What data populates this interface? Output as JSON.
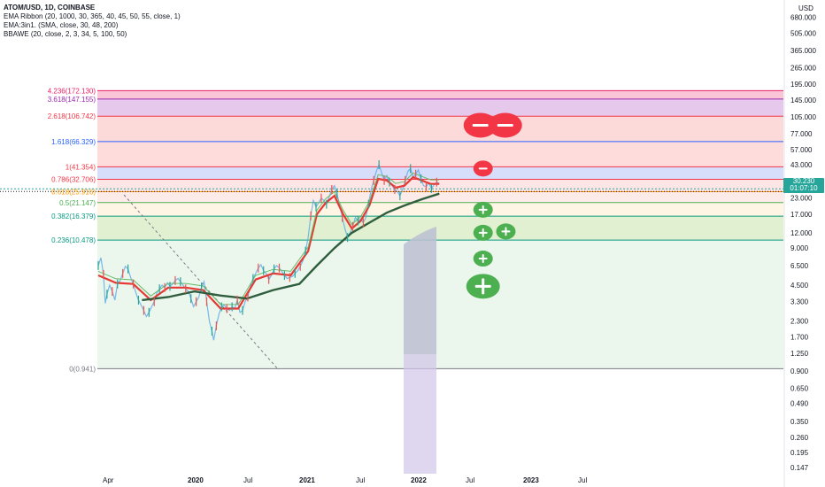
{
  "legend": {
    "title": "ATOM/USD, 1D, COINBASE",
    "indicators": [
      "EMA Ribbon (20, 1000, 30, 365, 40, 45, 50, 55, close, 1)",
      "EMA:3in1. (SMA, close, 30, 48, 200)",
      "BBAWE (20, close, 2, 3, 34, 5, 100, 50)"
    ]
  },
  "price_badge": {
    "price": "30.230",
    "countdown": "01:07:10"
  },
  "colors": {
    "up": "#26a69a",
    "down": "#ef5350",
    "ribbon": "#e53935",
    "ema200": "#2e5e3e",
    "minus_marker": "#f23645",
    "plus_marker": "#4caf50"
  },
  "chart_data": {
    "type": "line",
    "symbol": "ATOM/USD",
    "interval": "1D",
    "exchange": "COINBASE",
    "y_scale": "log",
    "ylim": [
      0.13,
      950
    ],
    "y_axis_unit": "USD",
    "yticks": [
      "680.000",
      "505.000",
      "365.000",
      "265.000",
      "195.000",
      "145.000",
      "105.000",
      "77.000",
      "57.000",
      "43.000",
      "23.000",
      "17.000",
      "12.000",
      "9.000",
      "6.500",
      "4.500",
      "3.300",
      "2.300",
      "1.700",
      "1.250",
      "0.900",
      "0.650",
      "0.490",
      "0.350",
      "0.260",
      "0.195",
      "0.147"
    ],
    "x_tick_labels": [
      "Apr",
      "2020",
      "Jul",
      "2021",
      "Jul",
      "2022",
      "Jul",
      "2023",
      "Jul"
    ],
    "fib_levels": [
      {
        "ratio": "4.236",
        "value": 172.13,
        "label": "4.236(172.130)",
        "color": "#e91e63",
        "fill": "#f8bbd0"
      },
      {
        "ratio": "3.618",
        "value": 147.155,
        "label": "3.618(147.155)",
        "color": "#9c27b0",
        "fill": "#e1bee7"
      },
      {
        "ratio": "2.618",
        "value": 106.742,
        "label": "2.618(106.742)",
        "color": "#f23645",
        "fill": "#fcd4d4"
      },
      {
        "ratio": "1.618",
        "value": 66.329,
        "label": "1.618(66.329)",
        "color": "#2962ff",
        "fill": "#ffd6d6"
      },
      {
        "ratio": "1",
        "value": 41.354,
        "label": "1(41.354)",
        "color": "#f23645",
        "fill": "#cfd8fc"
      },
      {
        "ratio": "0.786",
        "value": 32.706,
        "label": "0.786(32.706)",
        "color": "#f23645",
        "fill": "#fde0e0"
      },
      {
        "ratio": "0.618",
        "value": 25.916,
        "label": "0.618(25.916)",
        "color": "#ff9800",
        "fill": "#fde8e6"
      },
      {
        "ratio": "0.5",
        "value": 21.147,
        "label": "0.5(21.147)",
        "color": "#4caf50",
        "fill": "#fff3e0"
      },
      {
        "ratio": "0.382",
        "value": 16.379,
        "label": "0.382(16.379)",
        "color": "#089981",
        "fill": "#dcedc8"
      },
      {
        "ratio": "0.236",
        "value": 10.478,
        "label": "0.236(10.478)",
        "color": "#089981",
        "fill": "#e8f5e9"
      },
      {
        "ratio": "0",
        "value": 0.941,
        "label": "0(0.941)",
        "color": "#787b86",
        "fill": "#d9f1ed"
      }
    ],
    "last_price": 30.23,
    "price_series": [
      [
        0,
        6.5
      ],
      [
        3,
        7.5
      ],
      [
        6,
        5.5
      ],
      [
        8,
        3.2
      ],
      [
        10,
        3.8
      ],
      [
        13,
        4.5
      ],
      [
        16,
        4.0
      ],
      [
        19,
        3.4
      ],
      [
        22,
        4.6
      ],
      [
        25,
        4.9
      ],
      [
        28,
        5.6
      ],
      [
        31,
        6.4
      ],
      [
        34,
        6.1
      ],
      [
        37,
        5.2
      ],
      [
        40,
        4.6
      ],
      [
        43,
        3.9
      ],
      [
        46,
        3.4
      ],
      [
        49,
        3.1
      ],
      [
        52,
        2.8
      ],
      [
        55,
        2.5
      ],
      [
        58,
        2.7
      ],
      [
        61,
        3.0
      ],
      [
        64,
        3.3
      ],
      [
        67,
        3.9
      ],
      [
        70,
        4.2
      ],
      [
        73,
        4.5
      ],
      [
        76,
        4.3
      ],
      [
        79,
        4.7
      ],
      [
        82,
        4.4
      ],
      [
        85,
        4.6
      ],
      [
        88,
        4.9
      ],
      [
        91,
        5.1
      ],
      [
        94,
        4.8
      ],
      [
        97,
        4.5
      ],
      [
        100,
        4.2
      ],
      [
        103,
        4.0
      ],
      [
        106,
        3.5
      ],
      [
        109,
        3.0
      ],
      [
        112,
        3.3
      ],
      [
        115,
        3.6
      ],
      [
        118,
        4.3
      ],
      [
        121,
        4.8
      ],
      [
        124,
        3.3
      ],
      [
        127,
        2.3
      ],
      [
        130,
        1.9
      ],
      [
        132,
        1.6
      ],
      [
        135,
        2.1
      ],
      [
        138,
        2.6
      ],
      [
        141,
        3.0
      ],
      [
        144,
        3.1
      ],
      [
        147,
        2.9
      ],
      [
        150,
        2.8
      ],
      [
        153,
        3.0
      ],
      [
        156,
        2.9
      ],
      [
        159,
        3.4
      ],
      [
        162,
        2.7
      ],
      [
        165,
        2.8
      ],
      [
        168,
        3.3
      ],
      [
        171,
        3.6
      ],
      [
        174,
        4.4
      ],
      [
        177,
        5.1
      ],
      [
        180,
        5.6
      ],
      [
        183,
        6.2
      ],
      [
        186,
        6.6
      ],
      [
        189,
        5.9
      ],
      [
        192,
        5.6
      ],
      [
        195,
        5.0
      ],
      [
        198,
        5.4
      ],
      [
        201,
        6.1
      ],
      [
        204,
        6.5
      ],
      [
        207,
        6.2
      ],
      [
        210,
        5.8
      ],
      [
        213,
        5.4
      ],
      [
        216,
        5.1
      ],
      [
        219,
        5.2
      ],
      [
        222,
        5.3
      ],
      [
        225,
        5.6
      ],
      [
        228,
        5.9
      ],
      [
        231,
        6.4
      ],
      [
        234,
        7.1
      ],
      [
        237,
        8.5
      ],
      [
        240,
        11.0
      ],
      [
        243,
        16.5
      ],
      [
        246,
        22.0
      ],
      [
        249,
        19.5
      ],
      [
        252,
        21.0
      ],
      [
        255,
        23.0
      ],
      [
        258,
        22.0
      ],
      [
        261,
        20.5
      ],
      [
        264,
        23.5
      ],
      [
        267,
        27.0
      ],
      [
        270,
        29.0
      ],
      [
        273,
        25.0
      ],
      [
        276,
        20.0
      ],
      [
        279,
        16.0
      ],
      [
        282,
        13.0
      ],
      [
        285,
        11.0
      ],
      [
        288,
        12.0
      ],
      [
        291,
        13.5
      ],
      [
        294,
        16.0
      ],
      [
        297,
        15.0
      ],
      [
        300,
        15.5
      ],
      [
        303,
        14.5
      ],
      [
        306,
        16.0
      ],
      [
        309,
        20.5
      ],
      [
        312,
        27.0
      ],
      [
        315,
        32.0
      ],
      [
        318,
        38.0
      ],
      [
        321,
        43.0
      ],
      [
        324,
        37.0
      ],
      [
        327,
        32.0
      ],
      [
        330,
        35.0
      ],
      [
        333,
        31.0
      ],
      [
        336,
        29.0
      ],
      [
        339,
        27.0
      ],
      [
        342,
        26.0
      ],
      [
        345,
        24.0
      ],
      [
        348,
        27.0
      ],
      [
        351,
        32.0
      ],
      [
        354,
        38.0
      ],
      [
        357,
        40.0
      ],
      [
        360,
        34.0
      ],
      [
        363,
        36.0
      ],
      [
        366,
        39.0
      ],
      [
        369,
        33.0
      ],
      [
        372,
        29.0
      ],
      [
        375,
        28.5
      ],
      [
        378,
        30.5
      ],
      [
        381,
        27.5
      ],
      [
        384,
        29.5
      ],
      [
        387,
        31.0
      ],
      [
        390,
        30.23
      ]
    ],
    "ribbon_series": [
      [
        0,
        5.4
      ],
      [
        20,
        4.7
      ],
      [
        40,
        4.6
      ],
      [
        60,
        3.4
      ],
      [
        80,
        4.3
      ],
      [
        100,
        4.3
      ],
      [
        120,
        4.1
      ],
      [
        140,
        2.9
      ],
      [
        160,
        2.9
      ],
      [
        180,
        5.0
      ],
      [
        200,
        5.6
      ],
      [
        220,
        5.4
      ],
      [
        240,
        8.5
      ],
      [
        250,
        17.0
      ],
      [
        260,
        21.0
      ],
      [
        270,
        24.0
      ],
      [
        280,
        17.0
      ],
      [
        290,
        13.0
      ],
      [
        300,
        15.0
      ],
      [
        310,
        20.0
      ],
      [
        320,
        33.0
      ],
      [
        330,
        32.0
      ],
      [
        340,
        28.0
      ],
      [
        350,
        29.0
      ],
      [
        360,
        34.0
      ],
      [
        370,
        32.0
      ],
      [
        380,
        30.0
      ],
      [
        390,
        30.0
      ]
    ],
    "ema200_series": [
      [
        50,
        3.4
      ],
      [
        80,
        3.6
      ],
      [
        110,
        4.0
      ],
      [
        140,
        3.7
      ],
      [
        170,
        3.5
      ],
      [
        200,
        4.1
      ],
      [
        230,
        4.6
      ],
      [
        250,
        6.5
      ],
      [
        270,
        9.0
      ],
      [
        290,
        12.0
      ],
      [
        310,
        14.5
      ],
      [
        330,
        17.5
      ],
      [
        350,
        20.0
      ],
      [
        370,
        22.5
      ],
      [
        390,
        25.0
      ]
    ],
    "markers": [
      {
        "type": "minus",
        "date_index": 440,
        "value": 90,
        "size": "large",
        "double": true
      },
      {
        "type": "minus",
        "date_index": 440,
        "value": 40,
        "size": "small"
      },
      {
        "type": "plus",
        "date_index": 440,
        "value": 18.5,
        "size": "small"
      },
      {
        "type": "plus",
        "date_index": 440,
        "value": 12,
        "size": "small"
      },
      {
        "type": "plus",
        "date_index": 460,
        "value": 12.3,
        "size": "small"
      },
      {
        "type": "plus",
        "date_index": 440,
        "value": 7.4,
        "size": "small"
      },
      {
        "type": "plus",
        "date_index": 440,
        "value": 4.4,
        "size": "large"
      }
    ]
  }
}
